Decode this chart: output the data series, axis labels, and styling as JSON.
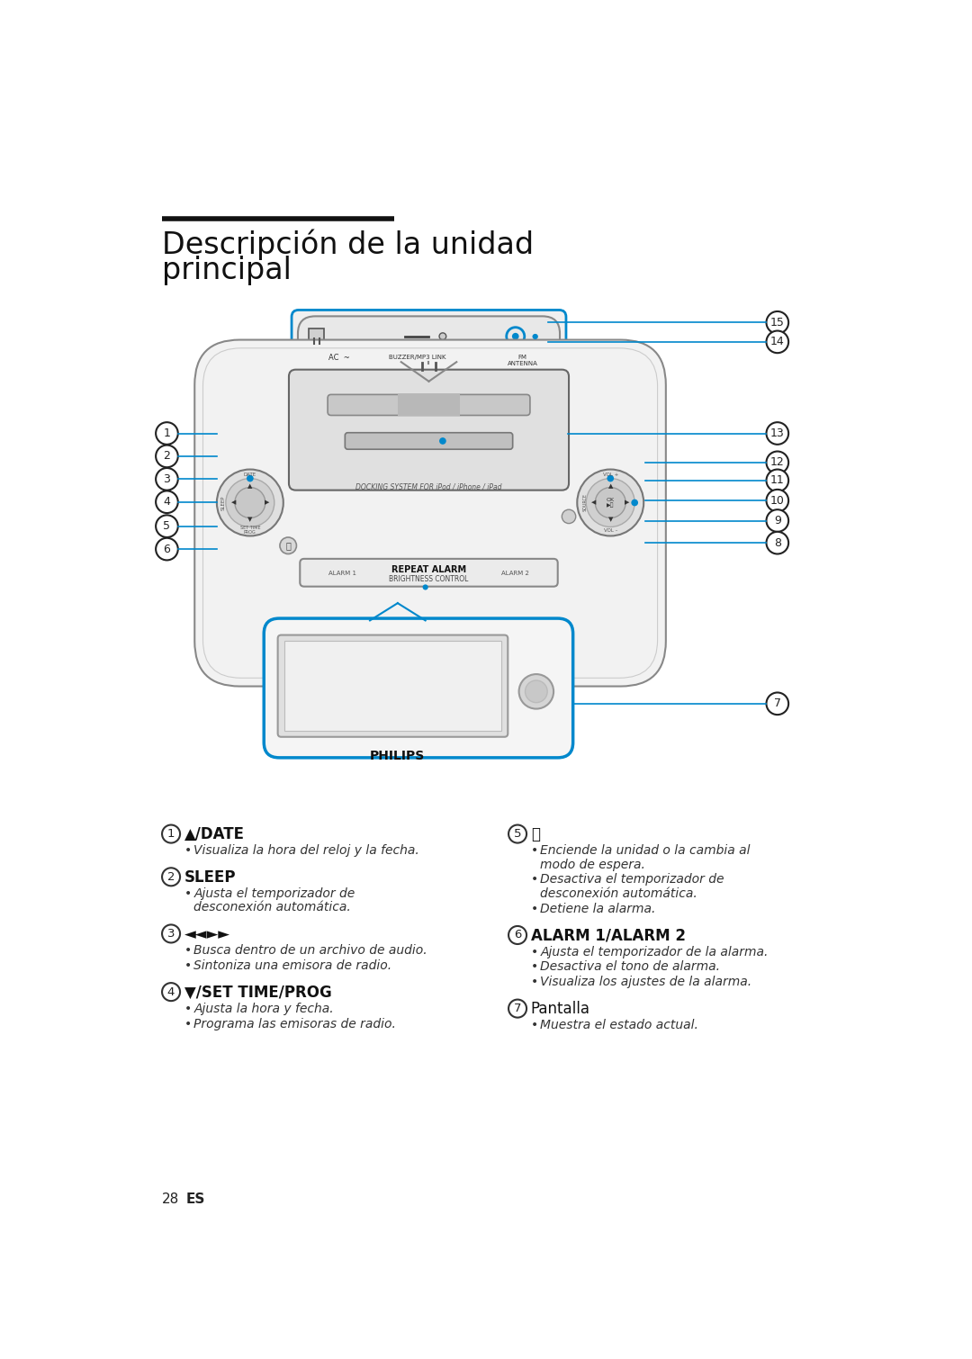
{
  "bg_color": "#ffffff",
  "title_line_color": "#1a1a1a",
  "title_line": "Descripción de la unidad",
  "title_line2": "principal",
  "title_fontsize": 24,
  "body_text_color": "#222222",
  "accent_color": "#0088cc",
  "footer_text": "28    ES",
  "left_col": [
    {
      "num": "1",
      "heading": "▲/DATE",
      "heading_bold": true,
      "bullets": [
        "Visualiza la hora del reloj y la fecha."
      ]
    },
    {
      "num": "2",
      "heading": "SLEEP",
      "heading_bold": true,
      "bullets": [
        "Ajusta el temporizador de\ndesconexión automática."
      ]
    },
    {
      "num": "3",
      "heading": "◄◄►►",
      "heading_bold": false,
      "bullets": [
        "Busca dentro de un archivo de audio.",
        "Sintoniza una emisora de radio."
      ]
    },
    {
      "num": "4",
      "heading": "▼/SET TIME/PROG",
      "heading_bold": true,
      "bullets": [
        "Ajusta la hora y fecha.",
        "Programa las emisoras de radio."
      ]
    }
  ],
  "right_col": [
    {
      "num": "5",
      "heading": "⏻",
      "heading_bold": false,
      "bullets": [
        "Enciende la unidad o la cambia al\nmodo de espera.",
        "Desactiva el temporizador de\ndesconexión automática.",
        "Detiene la alarma."
      ]
    },
    {
      "num": "6",
      "heading": "ALARM 1/ALARM 2",
      "heading_bold": true,
      "bullets": [
        "Ajusta el temporizador de la alarma.",
        "Desactiva el tono de alarma.",
        "Visualiza los ajustes de la alarma."
      ]
    },
    {
      "num": "7",
      "heading": "Pantalla",
      "heading_bold": false,
      "heading_semi_bold": true,
      "bullets": [
        "Muestra el estado actual."
      ]
    }
  ]
}
